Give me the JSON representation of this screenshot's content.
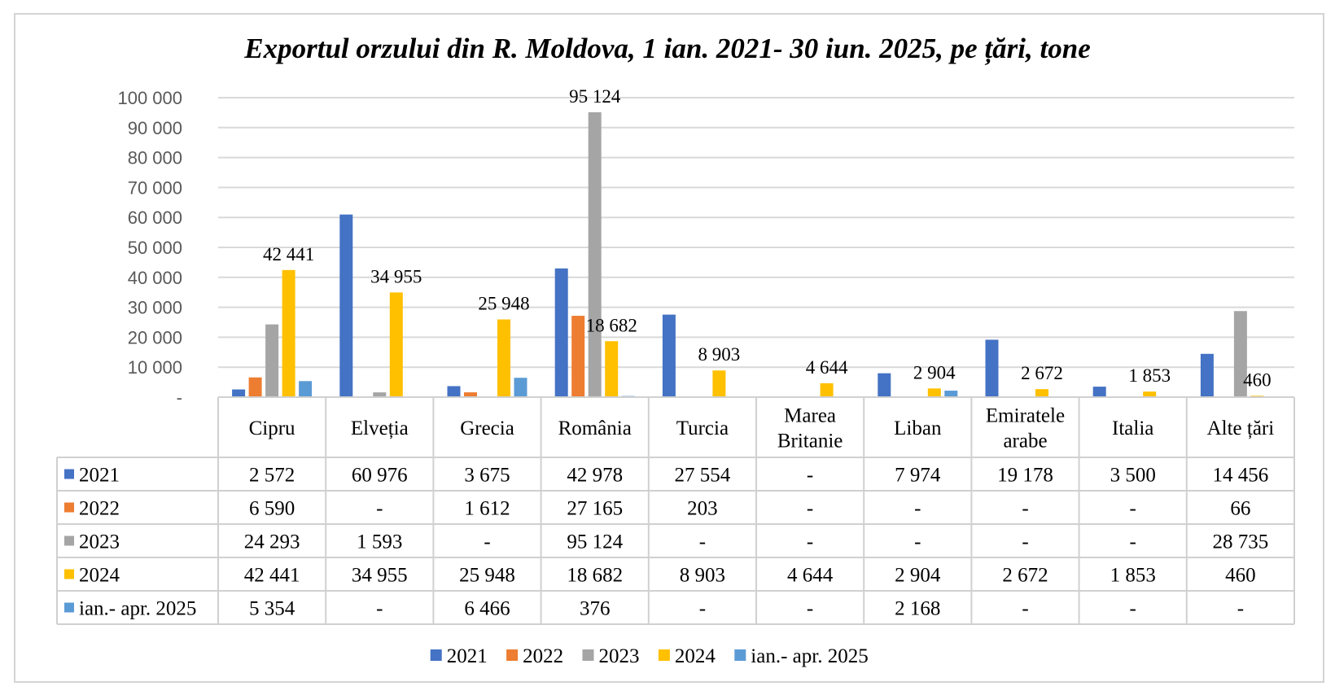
{
  "chart_data": {
    "type": "bar",
    "title": "Exportul orzului din R. Moldova, 1 ian. 2021- 30 iun. 2025, pe țări, tone",
    "categories": [
      [
        "Cipru"
      ],
      [
        "Elveția"
      ],
      [
        "Grecia"
      ],
      [
        "România"
      ],
      [
        "Turcia"
      ],
      [
        "Marea",
        "Britanie"
      ],
      [
        "Liban"
      ],
      [
        "Emiratele",
        "arabe"
      ],
      [
        "Italia"
      ],
      [
        "Alte țări"
      ]
    ],
    "ylim": [
      0,
      100000
    ],
    "yticks": [
      "-",
      "10 000",
      "20 000",
      "30 000",
      "40 000",
      "50 000",
      "60 000",
      "70 000",
      "80 000",
      "90 000",
      "100 000"
    ],
    "grid": true,
    "legend_position": "bottom",
    "series": [
      {
        "name": "2021",
        "color": "#4472c4",
        "values": [
          2572,
          60976,
          3675,
          42978,
          27554,
          0,
          7974,
          19178,
          3500,
          14456
        ],
        "table": [
          "2 572",
          "60 976",
          "3 675",
          "42 978",
          "27 554",
          "-",
          "7 974",
          "19 178",
          "3 500",
          "14 456"
        ]
      },
      {
        "name": "2022",
        "color": "#ed7d31",
        "values": [
          6590,
          0,
          1612,
          27165,
          203,
          0,
          0,
          0,
          0,
          66
        ],
        "table": [
          "6 590",
          "-",
          "1 612",
          "27 165",
          "203",
          "-",
          "-",
          "-",
          "-",
          "66"
        ]
      },
      {
        "name": "2023",
        "color": "#a5a5a5",
        "values": [
          24293,
          1593,
          0,
          95124,
          0,
          0,
          0,
          0,
          0,
          28735
        ],
        "table": [
          "24 293",
          "1 593",
          "-",
          "95 124",
          "-",
          "-",
          "-",
          "-",
          "-",
          "28 735"
        ]
      },
      {
        "name": "2024",
        "color": "#ffc000",
        "values": [
          42441,
          34955,
          25948,
          18682,
          8903,
          4644,
          2904,
          2672,
          1853,
          460
        ],
        "table": [
          "42 441",
          "34 955",
          "25 948",
          "18 682",
          "8 903",
          "4 644",
          "2 904",
          "2 672",
          "1 853",
          "460"
        ]
      },
      {
        "name": "ian.- apr. 2025",
        "color": "#5b9bd5",
        "values": [
          5354,
          0,
          6466,
          376,
          0,
          0,
          2168,
          0,
          0,
          0
        ],
        "table": [
          "5 354",
          "-",
          "6 466",
          "376",
          "-",
          "-",
          "2 168",
          "-",
          "-",
          "-"
        ]
      }
    ],
    "data_labels": [
      {
        "text": "42 441",
        "category": 0,
        "series": 3,
        "value": 42441
      },
      {
        "text": "34 955",
        "category": 1,
        "series": 3,
        "value": 34955
      },
      {
        "text": "25 948",
        "category": 2,
        "series": 3,
        "value": 25948
      },
      {
        "text": "95 124",
        "category": 3,
        "series": 2,
        "value": 95124
      },
      {
        "text": "18 682",
        "category": 3,
        "series": 3,
        "value": 18682
      },
      {
        "text": "8 903",
        "category": 4,
        "series": 3,
        "value": 8903
      },
      {
        "text": "4 644",
        "category": 5,
        "series": 3,
        "value": 4644
      },
      {
        "text": "2 904",
        "category": 6,
        "series": 3,
        "value": 2904
      },
      {
        "text": "2 672",
        "category": 7,
        "series": 3,
        "value": 2672
      },
      {
        "text": "1 853",
        "category": 8,
        "series": 3,
        "value": 1853
      },
      {
        "text": "460",
        "category": 9,
        "series": 3,
        "value": 460
      }
    ]
  }
}
